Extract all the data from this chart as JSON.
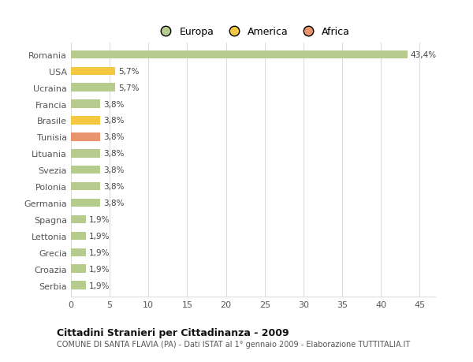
{
  "categories": [
    "Romania",
    "USA",
    "Ucraina",
    "Francia",
    "Brasile",
    "Tunisia",
    "Lituania",
    "Svezia",
    "Polonia",
    "Germania",
    "Spagna",
    "Lettonia",
    "Grecia",
    "Croazia",
    "Serbia"
  ],
  "values": [
    43.4,
    5.7,
    5.7,
    3.8,
    3.8,
    3.8,
    3.8,
    3.8,
    3.8,
    3.8,
    1.9,
    1.9,
    1.9,
    1.9,
    1.9
  ],
  "colors": [
    "#b5cc8e",
    "#f5c842",
    "#b5cc8e",
    "#b5cc8e",
    "#f5c842",
    "#e8956d",
    "#b5cc8e",
    "#b5cc8e",
    "#b5cc8e",
    "#b5cc8e",
    "#b5cc8e",
    "#b5cc8e",
    "#b5cc8e",
    "#b5cc8e",
    "#b5cc8e"
  ],
  "labels": [
    "43,4%",
    "5,7%",
    "5,7%",
    "3,8%",
    "3,8%",
    "3,8%",
    "3,8%",
    "3,8%",
    "3,8%",
    "3,8%",
    "1,9%",
    "1,9%",
    "1,9%",
    "1,9%",
    "1,9%"
  ],
  "xlim": [
    0,
    47
  ],
  "xticks": [
    0,
    5,
    10,
    15,
    20,
    25,
    30,
    35,
    40,
    45
  ],
  "legend_labels": [
    "Europa",
    "America",
    "Africa"
  ],
  "legend_colors": [
    "#b5cc8e",
    "#f5c842",
    "#e8956d"
  ],
  "title": "Cittadini Stranieri per Cittadinanza - 2009",
  "subtitle": "COMUNE DI SANTA FLAVIA (PA) - Dati ISTAT al 1° gennaio 2009 - Elaborazione TUTTITALIA.IT",
  "bg_color": "#ffffff",
  "plot_bg_color": "#ffffff",
  "bar_height": 0.5,
  "grid_color": "#dddddd",
  "text_color": "#555555",
  "label_color": "#444444"
}
